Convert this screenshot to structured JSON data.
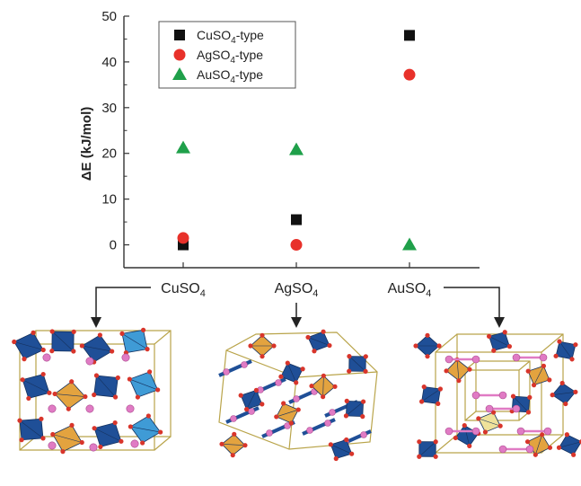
{
  "chart_data": {
    "type": "scatter",
    "title": "",
    "xlabel": "",
    "ylabel": "ΔE (kJ/mol)",
    "ylim": [
      -5,
      50
    ],
    "yticks": [
      0,
      10,
      20,
      30,
      40,
      50
    ],
    "grid": false,
    "legend_position": "top-left",
    "categories": [
      {
        "base": "CuSO",
        "sub": "4",
        "text": "CuSO4"
      },
      {
        "base": "AgSO",
        "sub": "4",
        "text": "AgSO4"
      },
      {
        "base": "AuSO",
        "sub": "4",
        "text": "AuSO4"
      }
    ],
    "series": [
      {
        "name": "CuSO4-type",
        "label_base": "CuSO",
        "label_sub": "4",
        "label_suffix": "-type",
        "marker": "square",
        "color": "#111111",
        "values": [
          0,
          5.5,
          45.8
        ]
      },
      {
        "name": "AgSO4-type",
        "label_base": "AgSO",
        "label_sub": "4",
        "label_suffix": "-type",
        "marker": "circle",
        "color": "#e8312a",
        "values": [
          1.5,
          0,
          37.2
        ]
      },
      {
        "name": "AuSO4-type",
        "label_base": "AuSO",
        "label_sub": "4",
        "label_suffix": "-type",
        "marker": "triangle",
        "color": "#1fa04a",
        "values": [
          21.2,
          20.8,
          0
        ]
      }
    ]
  },
  "colors": {
    "axis": "#333333",
    "tetra_dark": "#1f4f97",
    "tetra_light": "#3f9bd6",
    "tetra_orange": "#e3a33f",
    "tetra_yellow": "#efe29a",
    "atom_pink": "#e07bc4",
    "atom_red": "#d8352b",
    "cell_line": "#b9a44a"
  }
}
